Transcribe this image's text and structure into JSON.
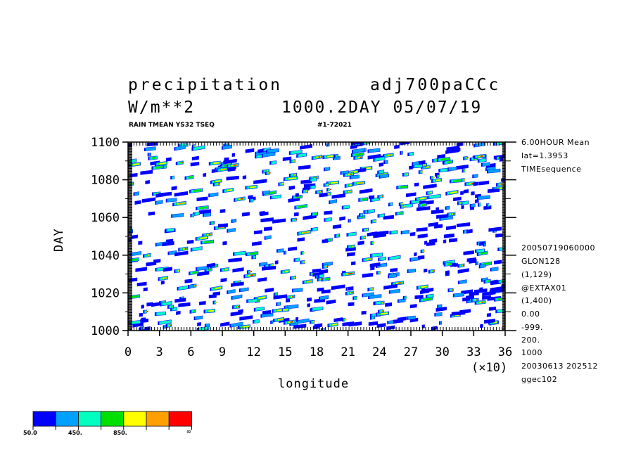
{
  "header": {
    "title_left": "precipitation",
    "title_right": "adj700paCCc",
    "units": "W/m**2",
    "day_date": "1000.2DAY 05/07/19",
    "subtitle_left": "RAIN TMEAN YS32 TSEQ",
    "subtitle_right": "#1-72021"
  },
  "info_panel": {
    "top": [
      "6.00HOUR Mean",
      "lat=1.3953",
      "TIMEsequence"
    ],
    "bottom": [
      "20050719060000",
      "GLON128",
      "(1,129)",
      "@EXTAX01",
      "(1,400)",
      "0.00",
      "-999.",
      "200.",
      "1000",
      "20030613 202512",
      "ggec102"
    ]
  },
  "colorbar": {
    "colors": [
      "#0000ff",
      "#00a0ff",
      "#00ffc0",
      "#00e000",
      "#ffff00",
      "#ffa000",
      "#ff0000"
    ],
    "labels": [
      "50.0",
      "450.",
      "850.",
      "∞"
    ]
  },
  "chart_data": {
    "type": "heatmap",
    "title": "precipitation",
    "xlabel": "longitude",
    "ylabel": "DAY",
    "x_multiplier": "(×10)",
    "xlim": [
      0,
      36
    ],
    "ylim": [
      1000,
      1100
    ],
    "x_ticks": [
      "0",
      "3",
      "6",
      "9",
      "12",
      "15",
      "18",
      "21",
      "24",
      "27",
      "30",
      "33",
      "36"
    ],
    "y_ticks": [
      "1000",
      "1020",
      "1040",
      "1060",
      "1080",
      "1100"
    ],
    "levels": [
      50,
      450,
      850
    ],
    "grid": false
  }
}
